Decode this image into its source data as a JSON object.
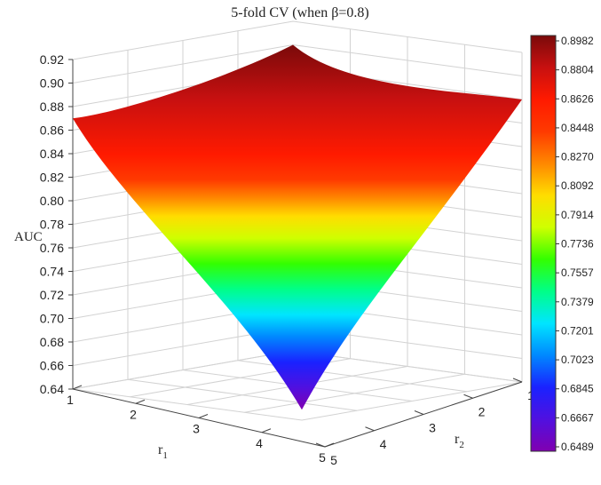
{
  "chart_data": {
    "type": "surface3d",
    "title": "5-fold CV (when β=0.8)",
    "zlabel": "AUC",
    "x_axis": {
      "label_main": "r",
      "label_sub": "1",
      "ticks": [
        "1",
        "2",
        "3",
        "4",
        "5"
      ]
    },
    "y_axis": {
      "label_main": "r",
      "label_sub": "2",
      "ticks": [
        "1",
        "2",
        "3",
        "4",
        "5"
      ]
    },
    "z_axis": {
      "ticks": [
        "0.64",
        "0.66",
        "0.68",
        "0.70",
        "0.72",
        "0.74",
        "0.76",
        "0.78",
        "0.80",
        "0.82",
        "0.84",
        "0.86",
        "0.88",
        "0.90",
        "0.92"
      ],
      "zlim": [
        0.64,
        0.92
      ]
    },
    "surface_corners": {
      "r1_1_r2_1": 0.9,
      "r1_1_r2_5": 0.88,
      "r1_5_r2_1": 0.87,
      "r1_5_r2_5": 0.6489
    },
    "colorbar": {
      "min": 0.6489,
      "max": 0.8982,
      "ticks": [
        "0.8982",
        "0.8804",
        "0.8626",
        "0.8448",
        "0.8270",
        "0.8092",
        "0.7914",
        "0.7736",
        "0.7557",
        "0.7379",
        "0.7201",
        "0.7023",
        "0.6845",
        "0.6667",
        "0.6489"
      ],
      "colors": [
        "#7a0a0a",
        "#c81010",
        "#ff1a00",
        "#ff3a00",
        "#ff8800",
        "#ffdd00",
        "#cfff00",
        "#33ff00",
        "#00ff88",
        "#00e5ff",
        "#0088ff",
        "#1a22ff",
        "#5010e0",
        "#8000b0"
      ]
    },
    "grid": true
  }
}
